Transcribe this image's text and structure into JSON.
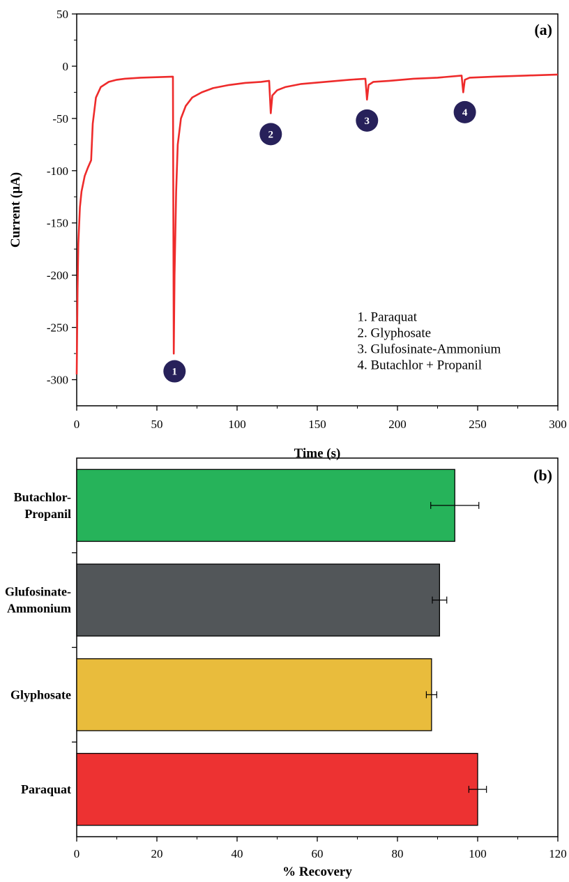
{
  "chart_data": [
    {
      "type": "line",
      "panel_label": "(a)",
      "xlabel": "Time (s)",
      "ylabel": "Current (µA)",
      "xlim": [
        0,
        300
      ],
      "ylim": [
        -325,
        50
      ],
      "xticks": [
        0,
        50,
        100,
        150,
        200,
        250,
        300
      ],
      "yticks": [
        50,
        0,
        -50,
        -100,
        -150,
        -200,
        -250,
        -300
      ],
      "line_color": "#ee2b2b",
      "marker_color": "#27215a",
      "series": [
        {
          "x": [
            0,
            0.5,
            1,
            2,
            3,
            5,
            7,
            9,
            10,
            12,
            15,
            20,
            25,
            30,
            40,
            50,
            60,
            60.5,
            61,
            62,
            63,
            65,
            68,
            72,
            78,
            85,
            95,
            105,
            115,
            120,
            121,
            122,
            125,
            130,
            140,
            155,
            170,
            180,
            181,
            182,
            185,
            195,
            210,
            225,
            240,
            241,
            242,
            245,
            260,
            280,
            300
          ],
          "y": [
            -295,
            -215,
            -170,
            -135,
            -120,
            -105,
            -97,
            -90,
            -55,
            -30,
            -20,
            -15,
            -13,
            -12,
            -11,
            -10.5,
            -10,
            -275,
            -200,
            -120,
            -75,
            -50,
            -38,
            -30,
            -25,
            -21,
            -18,
            -16,
            -15,
            -14,
            -45,
            -28,
            -23,
            -20,
            -17,
            -15,
            -13,
            -12,
            -32,
            -18,
            -15,
            -14,
            -12,
            -11,
            -9,
            -25,
            -13,
            -11,
            -10,
            -9,
            -8
          ]
        }
      ],
      "markers": [
        {
          "label": "1",
          "x": 61,
          "y": -292
        },
        {
          "label": "2",
          "x": 121,
          "y": -65
        },
        {
          "label": "3",
          "x": 181,
          "y": -52
        },
        {
          "label": "4",
          "x": 242,
          "y": -44
        }
      ],
      "legend": {
        "placement": "bottom-right",
        "entries": [
          "1. Paraquat",
          "2. Glyphosate",
          "3. Glufosinate-Ammonium",
          "4. Butachlor + Propanil"
        ]
      }
    },
    {
      "type": "bar",
      "orientation": "horizontal",
      "panel_label": "(b)",
      "xlabel": "% Recovery",
      "ylabel": "",
      "xlim": [
        0,
        120
      ],
      "xticks": [
        0,
        20,
        40,
        60,
        80,
        100,
        120
      ],
      "categories": [
        {
          "lines": [
            "Paraquat"
          ],
          "value": 100,
          "error": 2.2,
          "color": "#ed3232"
        },
        {
          "lines": [
            "Glyphosate"
          ],
          "value": 88.5,
          "error": 1.3,
          "color": "#e9bc3c"
        },
        {
          "lines": [
            "Glufosinate-",
            "Ammonium"
          ],
          "value": 90.5,
          "error": 1.8,
          "color": "#525659"
        },
        {
          "lines": [
            "Butachlor-",
            "Propanil"
          ],
          "value": 94.3,
          "error": 6.0,
          "color": "#26b35a"
        }
      ]
    }
  ]
}
